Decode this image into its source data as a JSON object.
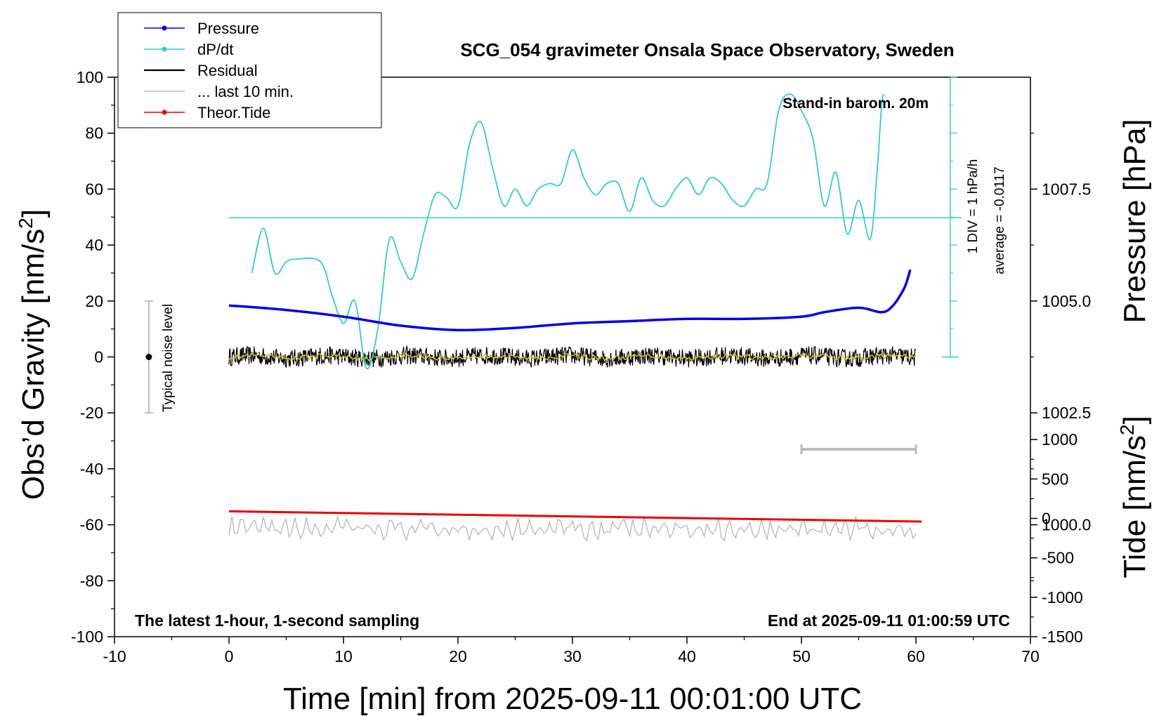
{
  "chart_data": {
    "type": "line",
    "title": "SCG_054 gravimeter Onsala Space Observatory, Sweden",
    "xlabel": "Time [min] from 2025-09-11 00:01:00 UTC",
    "ylabel_left_main": "Obs’d Gravity [nm/s",
    "ylabel_left_sup": "2",
    "ylabel_left_end": "]",
    "ylabel_right_pressure": "Pressure [hPa]",
    "ylabel_right_tide_main": "Tide [nm/s",
    "ylabel_right_tide_sup": "2",
    "ylabel_right_tide_end": "]",
    "xlim": [
      -10,
      70
    ],
    "ylim": [
      -100,
      100
    ],
    "x_ticks": [
      "-10",
      "0",
      "10",
      "20",
      "30",
      "40",
      "50",
      "60",
      "70"
    ],
    "y_ticks": [
      "-100",
      "-80",
      "-60",
      "-40",
      "-20",
      "0",
      "20",
      "40",
      "60",
      "80",
      "100"
    ],
    "pressure_axis": {
      "range_hpa": [
        997.5,
        1010.0
      ],
      "ticks": [
        "1000.0",
        "1002.5",
        "1005.0",
        "1007.5"
      ]
    },
    "tide_axis": {
      "range": [
        -1500,
        1500
      ],
      "ticks": [
        "-1500",
        "-1000",
        "-500",
        "0",
        "500",
        "1000"
      ]
    },
    "annotations": {
      "barometer": "Stand-in barom. 20m",
      "div": "1 DIV = 1 hPa/h",
      "average": "average = -0.0117",
      "noise": "Typical noise level",
      "bottom_left": "The latest 1-hour, 1-second sampling",
      "bottom_right": "End at 2025-09-11 01:00:59 UTC"
    },
    "legend": [
      {
        "name": "Pressure",
        "color": "#0000ee",
        "marker": true
      },
      {
        "name": "dP/dt",
        "color": "#33cccc",
        "marker": true
      },
      {
        "name": "Residual",
        "color": "#000000",
        "marker": false
      },
      {
        "name": "... last 10 min.",
        "color": "#bbbbbb",
        "marker": false
      },
      {
        "name": "Theor.Tide",
        "color": "#ee0000",
        "marker": true
      }
    ],
    "noise_bar": {
      "x": -7,
      "y_center": 0,
      "y_range": [
        -20,
        20
      ]
    },
    "last10_bar": {
      "x_range": [
        50,
        60
      ],
      "y": -33
    },
    "series": [
      {
        "name": "Pressure",
        "color": "#0000ee",
        "unit": "hPa",
        "x": [
          0,
          5,
          10,
          15,
          20,
          25,
          30,
          35,
          40,
          45,
          50,
          52,
          55,
          57,
          58,
          59,
          59.5
        ],
        "values": [
          1004.9,
          1004.8,
          1004.65,
          1004.45,
          1004.35,
          1004.4,
          1004.5,
          1004.55,
          1004.6,
          1004.6,
          1004.65,
          1004.75,
          1004.85,
          1004.75,
          1004.9,
          1005.3,
          1005.7
        ]
      },
      {
        "name": "dP/dt",
        "color": "#33cccc",
        "unit": "DIV below 100",
        "x": [
          2,
          3,
          4,
          5,
          6,
          8,
          9,
          10,
          11,
          12,
          13,
          14,
          15,
          16,
          17,
          18,
          19,
          20,
          21,
          22,
          23,
          24,
          25,
          26,
          27,
          28,
          29,
          30,
          31,
          32,
          33,
          34,
          35,
          36,
          37,
          38,
          39,
          40,
          41,
          42,
          43,
          44,
          45,
          46,
          47,
          48,
          49,
          50,
          51,
          52,
          53,
          54,
          55,
          56,
          56.6,
          57,
          57.2
        ],
        "values": [
          -3.5,
          -2.7,
          -3.5,
          -3.3,
          -3.25,
          -3.3,
          -3.9,
          -4.4,
          -4.0,
          -5.2,
          -4.5,
          -2.9,
          -3.3,
          -3.6,
          -2.8,
          -2.1,
          -2.15,
          -2.3,
          -1.2,
          -0.8,
          -1.6,
          -2.3,
          -2.0,
          -2.3,
          -2.0,
          -1.9,
          -1.9,
          -1.3,
          -1.8,
          -2.1,
          -1.9,
          -1.9,
          -2.4,
          -1.8,
          -2.2,
          -2.3,
          -2.0,
          -1.8,
          -2.1,
          -1.8,
          -1.9,
          -2.2,
          -2.3,
          -2.0,
          -1.9,
          -0.6,
          -0.3,
          -0.6,
          -1.1,
          -2.3,
          -1.7,
          -2.8,
          -2.2,
          -2.9,
          -1.7,
          -0.5,
          -0.3
        ]
      },
      {
        "name": "Residual",
        "color": "#000000",
        "unit": "nm/s2",
        "x": [
          0,
          60
        ],
        "amplitude": 3.3,
        "offset": 0
      },
      {
        "name": "Residual smoothed",
        "color": "#c8c820",
        "unit": "nm/s2",
        "x": [
          0,
          60
        ],
        "amplitude": 0.9,
        "offset": 0
      },
      {
        "name": "... last 10 min.",
        "color": "#bbbbbb",
        "unit": "nm/s2",
        "x": [
          0,
          60
        ],
        "center": -61.5,
        "amplitude": 3.5
      },
      {
        "name": "Theor.Tide",
        "color": "#ee0000",
        "unit": "nm/s2",
        "x": [
          0,
          60.5
        ],
        "values": [
          90,
          -40
        ]
      }
    ]
  }
}
